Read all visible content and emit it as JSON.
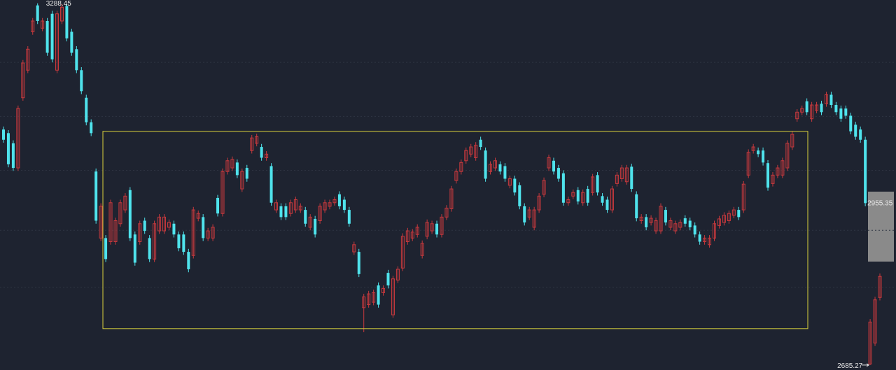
{
  "chart_data": {
    "type": "candlestick",
    "up_color": "#c8393d",
    "down_color": "#4fe3ec",
    "box_color": "#d9d23c",
    "ylim": [
      2677,
      3294
    ],
    "grid_y": [
      3190,
      3100,
      3010,
      2910,
      2815
    ],
    "grid": true,
    "box": {
      "high": 3075,
      "low": 2746
    },
    "ohlc": [
      [
        3078,
        3083,
        3056,
        3061
      ],
      [
        3072,
        3077,
        3015,
        3020
      ],
      [
        3055,
        3060,
        3009,
        3014
      ],
      [
        3014,
        3118,
        3009,
        3113
      ],
      [
        3131,
        3194,
        3126,
        3189
      ],
      [
        3177,
        3217,
        3172,
        3212
      ],
      [
        3241,
        3264,
        3236,
        3259
      ],
      [
        3285,
        3288.45,
        3254,
        3259
      ],
      [
        3247,
        3264,
        3242,
        3259
      ],
      [
        3259,
        3264,
        3201,
        3206
      ],
      [
        3271,
        3276,
        3190,
        3195
      ],
      [
        3177,
        3276,
        3172,
        3271
      ],
      [
        3259,
        3287,
        3254,
        3282
      ],
      [
        3284,
        3287,
        3225,
        3230
      ],
      [
        3241,
        3246,
        3201,
        3206
      ],
      [
        3212,
        3217,
        3172,
        3177
      ],
      [
        3177,
        3182,
        3137,
        3142
      ],
      [
        3131,
        3136,
        3085,
        3090
      ],
      [
        3090,
        3095,
        3067,
        3072
      ],
      [
        3008,
        3013,
        2921,
        2926
      ],
      [
        2897,
        2955,
        2892,
        2950
      ],
      [
        2897,
        2902,
        2857,
        2862
      ],
      [
        2891,
        2961,
        2886,
        2956
      ],
      [
        2891,
        2931,
        2886,
        2926
      ],
      [
        2921,
        2961,
        2916,
        2956
      ],
      [
        2944,
        2972,
        2939,
        2967
      ],
      [
        2977,
        2982,
        2892,
        2897
      ],
      [
        2903,
        2908,
        2851,
        2856
      ],
      [
        2891,
        2926,
        2886,
        2921
      ],
      [
        2926,
        2931,
        2904,
        2909
      ],
      [
        2897,
        2902,
        2857,
        2862
      ],
      [
        2862,
        2926,
        2857,
        2921
      ],
      [
        2909,
        2937,
        2904,
        2932
      ],
      [
        2909,
        2937,
        2904,
        2932
      ],
      [
        2915,
        2928,
        2910,
        2923
      ],
      [
        2921,
        2926,
        2898,
        2903
      ],
      [
        2903,
        2908,
        2875,
        2880
      ],
      [
        2903,
        2908,
        2869,
        2874
      ],
      [
        2874,
        2879,
        2840,
        2845
      ],
      [
        2868,
        2949,
        2863,
        2944
      ],
      [
        2930,
        2943,
        2925,
        2938
      ],
      [
        2932,
        2937,
        2892,
        2897
      ],
      [
        2897,
        2914,
        2892,
        2909
      ],
      [
        2897,
        2920,
        2892,
        2915
      ],
      [
        2964,
        2969,
        2933,
        2938
      ],
      [
        2938,
        3013,
        2933,
        3008
      ],
      [
        3008,
        3031,
        3003,
        3026
      ],
      [
        3014,
        3033,
        3009,
        3028
      ],
      [
        3023,
        3028,
        2997,
        3002
      ],
      [
        2979,
        3013,
        2974,
        3008
      ],
      [
        3014,
        3019,
        2991,
        2996
      ],
      [
        3043,
        3069,
        3038,
        3064
      ],
      [
        3055,
        3071,
        3050,
        3066
      ],
      [
        3049,
        3054,
        3026,
        3031
      ],
      [
        3031,
        3042,
        3026,
        3037
      ],
      [
        3017,
        3022,
        2951,
        2956
      ],
      [
        2944,
        2961,
        2939,
        2956
      ],
      [
        2950,
        2955,
        2927,
        2932
      ],
      [
        2950,
        2955,
        2927,
        2932
      ],
      [
        2938,
        2961,
        2933,
        2956
      ],
      [
        2944,
        2966,
        2939,
        2961
      ],
      [
        2944,
        2955,
        2939,
        2950
      ],
      [
        2944,
        2949,
        2916,
        2921
      ],
      [
        2915,
        2937,
        2910,
        2932
      ],
      [
        2929,
        2934,
        2898,
        2903
      ],
      [
        2926,
        2955,
        2921,
        2950
      ],
      [
        2944,
        2961,
        2939,
        2956
      ],
      [
        2950,
        2961,
        2945,
        2956
      ],
      [
        2956,
        2966,
        2951,
        2961
      ],
      [
        2970,
        2975,
        2945,
        2950
      ],
      [
        2961,
        2966,
        2939,
        2944
      ],
      [
        2944,
        2949,
        2916,
        2921
      ],
      [
        2874,
        2891,
        2869,
        2886
      ],
      [
        2874,
        2879,
        2832,
        2837
      ],
      [
        2781,
        2804,
        2740,
        2799
      ],
      [
        2786,
        2809,
        2781,
        2804
      ],
      [
        2790,
        2811,
        2785,
        2806
      ],
      [
        2818,
        2823,
        2781,
        2786
      ],
      [
        2806,
        2818,
        2801,
        2813
      ],
      [
        2839,
        2844,
        2813,
        2818
      ],
      [
        2769,
        2834,
        2764,
        2829
      ],
      [
        2827,
        2850,
        2822,
        2845
      ],
      [
        2847,
        2905,
        2842,
        2900
      ],
      [
        2891,
        2914,
        2886,
        2909
      ],
      [
        2897,
        2912,
        2892,
        2907
      ],
      [
        2903,
        2920,
        2898,
        2915
      ],
      [
        2868,
        2893,
        2863,
        2888
      ],
      [
        2900,
        2928,
        2895,
        2923
      ],
      [
        2909,
        2926,
        2904,
        2921
      ],
      [
        2921,
        2926,
        2898,
        2903
      ],
      [
        2903,
        2937,
        2898,
        2932
      ],
      [
        2932,
        2952,
        2927,
        2947
      ],
      [
        2946,
        2984,
        2941,
        2979
      ],
      [
        2993,
        3013,
        2988,
        3008
      ],
      [
        3008,
        3028,
        3003,
        3023
      ],
      [
        3026,
        3048,
        3021,
        3043
      ],
      [
        3037,
        3054,
        3032,
        3049
      ],
      [
        3031,
        3057,
        3026,
        3052
      ],
      [
        3061,
        3066,
        3044,
        3049
      ],
      [
        3043,
        3048,
        2991,
        2996
      ],
      [
        3008,
        3025,
        3003,
        3020
      ],
      [
        3014,
        3031,
        3009,
        3026
      ],
      [
        3020,
        3025,
        3003,
        3008
      ],
      [
        3017,
        3022,
        2991,
        2996
      ],
      [
        2985,
        3001,
        2980,
        2996
      ],
      [
        2996,
        3001,
        2968,
        2973
      ],
      [
        2985,
        2990,
        2945,
        2950
      ],
      [
        2950,
        2955,
        2918,
        2923
      ],
      [
        2932,
        2949,
        2927,
        2944
      ],
      [
        2915,
        2949,
        2910,
        2944
      ],
      [
        2944,
        2972,
        2939,
        2967
      ],
      [
        2970,
        2998,
        2965,
        2993
      ],
      [
        3014,
        3036,
        3009,
        3031
      ],
      [
        3026,
        3031,
        3003,
        3008
      ],
      [
        3014,
        3019,
        2991,
        2996
      ],
      [
        3005,
        3010,
        2951,
        2956
      ],
      [
        2956,
        2966,
        2951,
        2961
      ],
      [
        2967,
        2978,
        2962,
        2973
      ],
      [
        2977,
        2982,
        2953,
        2958
      ],
      [
        2956,
        2978,
        2951,
        2973
      ],
      [
        2979,
        2984,
        2951,
        2956
      ],
      [
        2973,
        3004,
        2968,
        2999
      ],
      [
        3002,
        3007,
        2968,
        2973
      ],
      [
        2967,
        2972,
        2951,
        2956
      ],
      [
        2961,
        2966,
        2939,
        2944
      ],
      [
        2944,
        2984,
        2939,
        2979
      ],
      [
        2988,
        3007,
        2983,
        3002
      ],
      [
        2996,
        3019,
        2991,
        3014
      ],
      [
        2991,
        3019,
        2986,
        3014
      ],
      [
        3016,
        3021,
        2974,
        2979
      ],
      [
        2970,
        2975,
        2925,
        2930
      ],
      [
        2926,
        2937,
        2921,
        2932
      ],
      [
        2932,
        2937,
        2910,
        2915
      ],
      [
        2923,
        2935,
        2918,
        2930
      ],
      [
        2909,
        2931,
        2904,
        2926
      ],
      [
        2909,
        2955,
        2904,
        2950
      ],
      [
        2944,
        2949,
        2918,
        2923
      ],
      [
        2915,
        2931,
        2910,
        2926
      ],
      [
        2909,
        2926,
        2904,
        2921
      ],
      [
        2915,
        2928,
        2910,
        2923
      ],
      [
        2930,
        2935,
        2916,
        2921
      ],
      [
        2926,
        2931,
        2910,
        2915
      ],
      [
        2918,
        2923,
        2898,
        2903
      ],
      [
        2903,
        2908,
        2886,
        2891
      ],
      [
        2891,
        2902,
        2886,
        2897
      ],
      [
        2886,
        2902,
        2881,
        2897
      ],
      [
        2897,
        2926,
        2892,
        2921
      ],
      [
        2918,
        2934,
        2913,
        2929
      ],
      [
        2923,
        2940,
        2918,
        2935
      ],
      [
        2926,
        2943,
        2921,
        2938
      ],
      [
        2935,
        2949,
        2930,
        2944
      ],
      [
        2944,
        2949,
        2927,
        2932
      ],
      [
        2944,
        2992,
        2939,
        2987
      ],
      [
        3002,
        3045,
        2997,
        3040
      ],
      [
        3043,
        3054,
        3038,
        3049
      ],
      [
        3043,
        3048,
        3032,
        3037
      ],
      [
        3043,
        3048,
        3018,
        3023
      ],
      [
        3022,
        3027,
        2976,
        2981
      ],
      [
        2988,
        3007,
        2983,
        3002
      ],
      [
        3002,
        3019,
        2997,
        3014
      ],
      [
        3002,
        3031,
        2997,
        3026
      ],
      [
        3014,
        3060,
        3009,
        3055
      ],
      [
        3049,
        3075,
        3044,
        3070
      ],
      [
        3096,
        3112,
        3091,
        3107
      ],
      [
        3107,
        3118,
        3102,
        3113
      ],
      [
        3125,
        3130,
        3102,
        3107
      ],
      [
        3096,
        3124,
        3091,
        3119
      ],
      [
        3110,
        3124,
        3105,
        3119
      ],
      [
        3121,
        3126,
        3102,
        3107
      ],
      [
        3121,
        3141,
        3116,
        3136
      ],
      [
        3136,
        3141,
        3114,
        3119
      ],
      [
        3119,
        3124,
        3102,
        3107
      ],
      [
        3113,
        3118,
        3091,
        3096
      ],
      [
        3113,
        3118,
        3096,
        3101
      ],
      [
        3101,
        3106,
        3070,
        3075
      ],
      [
        3086,
        3091,
        3061,
        3066
      ],
      [
        3078,
        3083,
        3056,
        3061
      ],
      [
        3061,
        3066,
        2950,
        2955.35
      ],
      [
        2687,
        2762,
        2685.27,
        2757
      ],
      [
        2722,
        2799,
        2717,
        2794
      ],
      [
        2798,
        2838,
        2793,
        2833
      ]
    ]
  }
}
